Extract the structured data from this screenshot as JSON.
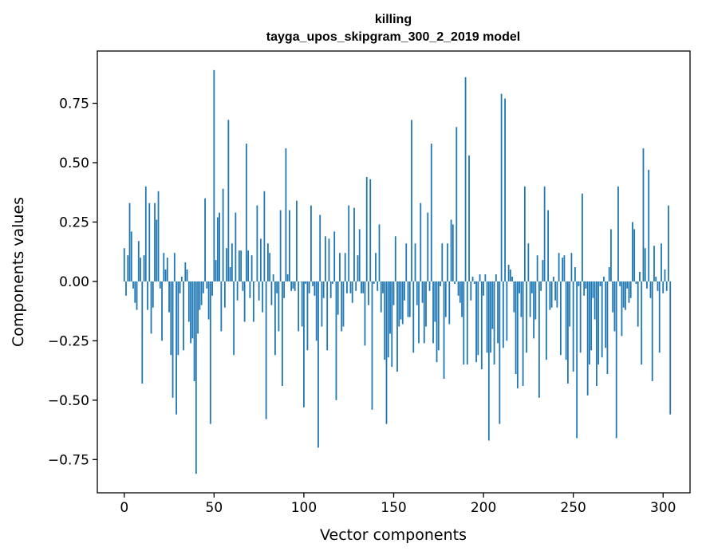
{
  "chart_data": {
    "type": "bar",
    "title": "killing",
    "subtitle": "tayga_upos_skipgram_300_2_2019 model",
    "xlabel": "Vector components",
    "ylabel": "Components values",
    "xlim": [
      -15,
      315
    ],
    "ylim": [
      -0.89,
      0.97
    ],
    "xticks": [
      0,
      50,
      100,
      150,
      200,
      250,
      300
    ],
    "yticks": [
      -0.75,
      -0.5,
      -0.25,
      0.0,
      0.25,
      0.5,
      0.75
    ],
    "xtick_labels": [
      "0",
      "50",
      "100",
      "150",
      "200",
      "250",
      "300"
    ],
    "ytick_labels": [
      "−0.75",
      "−0.50",
      "−0.25",
      "0.00",
      "0.25",
      "0.50",
      "0.75"
    ],
    "grid": false,
    "bar_color": "#1f77b4",
    "values": [
      0.14,
      -0.06,
      0.11,
      0.33,
      0.21,
      -0.03,
      -0.09,
      -0.12,
      0.17,
      0.1,
      -0.43,
      0.11,
      0.4,
      -0.12,
      0.33,
      -0.22,
      -0.11,
      0.33,
      0.26,
      0.38,
      -0.03,
      -0.25,
      0.12,
      0.05,
      0.1,
      -0.13,
      -0.31,
      -0.49,
      0.12,
      -0.56,
      -0.31,
      -0.05,
      0.02,
      -0.29,
      0.08,
      0.05,
      -0.17,
      -0.26,
      -0.24,
      -0.42,
      -0.81,
      -0.22,
      -0.12,
      -0.1,
      -0.05,
      0.35,
      -0.03,
      -0.16,
      -0.6,
      -0.06,
      0.89,
      0.09,
      0.27,
      0.29,
      -0.21,
      0.39,
      -0.11,
      0.14,
      0.68,
      0.06,
      0.16,
      -0.31,
      0.29,
      -0.08,
      0.13,
      0.13,
      -0.04,
      -0.17,
      0.58,
      0.13,
      -0.07,
      0.11,
      -0.17,
      0.0,
      0.32,
      -0.08,
      0.18,
      -0.13,
      0.38,
      -0.58,
      0.16,
      0.12,
      -0.1,
      0.03,
      -0.31,
      -0.05,
      -0.21,
      0.3,
      -0.44,
      -0.07,
      0.56,
      0.03,
      0.3,
      -0.04,
      -0.03,
      -0.04,
      0.34,
      -0.21,
      0.0,
      -0.19,
      -0.53,
      -0.01,
      -0.29,
      -0.05,
      0.32,
      -0.02,
      -0.06,
      -0.25,
      -0.7,
      0.28,
      -0.19,
      -0.07,
      0.19,
      -0.29,
      0.18,
      -0.07,
      -0.01,
      0.21,
      -0.5,
      -0.14,
      0.12,
      -0.21,
      -0.19,
      0.12,
      -0.05,
      0.32,
      -0.05,
      -0.09,
      0.31,
      -0.04,
      0.11,
      0.22,
      -0.05,
      -0.05,
      -0.27,
      0.44,
      -0.1,
      0.43,
      -0.54,
      -0.01,
      0.12,
      -0.04,
      0.24,
      -0.13,
      -0.05,
      -0.33,
      -0.6,
      -0.32,
      -0.22,
      -0.36,
      -0.1,
      0.19,
      -0.38,
      -0.19,
      -0.16,
      -0.18,
      -0.08,
      0.16,
      -0.15,
      -0.15,
      0.68,
      -0.3,
      0.16,
      -0.1,
      -0.26,
      0.33,
      -0.09,
      -0.26,
      -0.19,
      0.29,
      -0.04,
      0.58,
      -0.26,
      -0.17,
      -0.34,
      -0.29,
      -0.02,
      0.16,
      -0.41,
      -0.15,
      0.16,
      -0.18,
      0.26,
      0.24,
      -0.01,
      0.65,
      -0.06,
      -0.09,
      -0.15,
      -0.35,
      0.86,
      -0.35,
      0.53,
      -0.08,
      0.02,
      -0.01,
      -0.34,
      -0.31,
      0.03,
      -0.37,
      -0.06,
      0.03,
      -0.3,
      -0.67,
      -0.3,
      -0.2,
      -0.35,
      0.03,
      -0.26,
      -0.6,
      0.79,
      -0.28,
      0.77,
      -0.25,
      0.07,
      0.05,
      0.02,
      -0.13,
      -0.39,
      -0.45,
      -0.05,
      -0.15,
      -0.44,
      0.4,
      -0.3,
      0.16,
      -0.15,
      -0.05,
      -0.24,
      -0.16,
      0.11,
      -0.49,
      -0.04,
      0.09,
      0.4,
      -0.33,
      0.3,
      -0.12,
      -0.11,
      0.02,
      -0.08,
      -0.11,
      0.12,
      -0.31,
      0.1,
      0.11,
      -0.33,
      -0.43,
      -0.19,
      0.12,
      -0.38,
      0.06,
      -0.66,
      -0.02,
      -0.3,
      0.37,
      -0.06,
      -0.03,
      -0.48,
      -0.35,
      -0.29,
      -0.07,
      -0.16,
      -0.44,
      -0.35,
      -0.02,
      -0.32,
      0.02,
      -0.28,
      -0.39,
      0.06,
      0.22,
      -0.13,
      -0.21,
      -0.66,
      0.4,
      -0.02,
      -0.23,
      -0.11,
      -0.12,
      -0.03,
      -0.09,
      -0.07,
      0.25,
      0.22,
      -0.01,
      -0.19,
      0.04,
      -0.35,
      0.56,
      0.14,
      -0.03,
      0.47,
      -0.07,
      -0.42,
      0.15,
      0.02,
      -0.04,
      -0.3,
      0.16,
      -0.05,
      0.05,
      -0.04,
      0.32,
      -0.56
    ]
  }
}
